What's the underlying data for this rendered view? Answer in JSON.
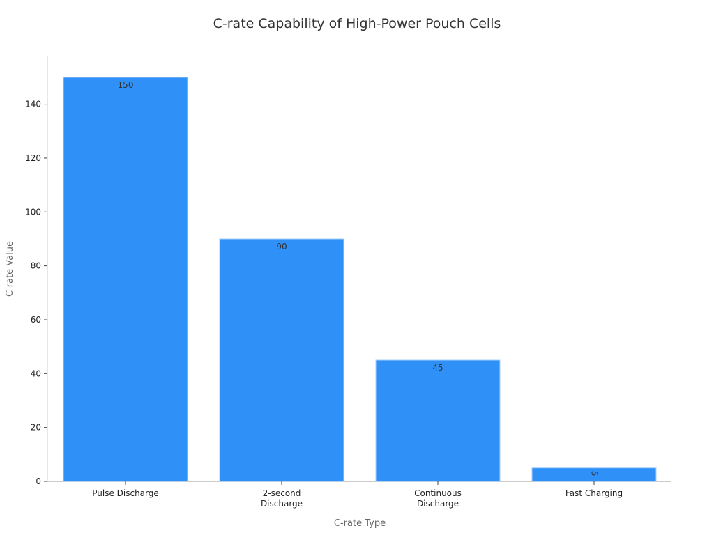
{
  "chart_data": {
    "type": "bar",
    "title": "C-rate Capability of High-Power Pouch Cells",
    "xlabel": "C-rate Type",
    "ylabel": "C-rate Value",
    "categories": [
      [
        "Pulse Discharge"
      ],
      [
        "2-second",
        "Discharge"
      ],
      [
        "Continuous",
        "Discharge"
      ],
      [
        "Fast Charging"
      ]
    ],
    "values": [
      150,
      90,
      45,
      5
    ],
    "data_labels": [
      "150",
      "90",
      "45",
      "5"
    ],
    "yticks": [
      0,
      20,
      40,
      60,
      80,
      100,
      120,
      140
    ],
    "ylim": [
      0,
      158
    ],
    "grid": false,
    "legend": "none",
    "bar_color": "#2f91f8",
    "bar_edge_color": "#a8d0fb"
  }
}
